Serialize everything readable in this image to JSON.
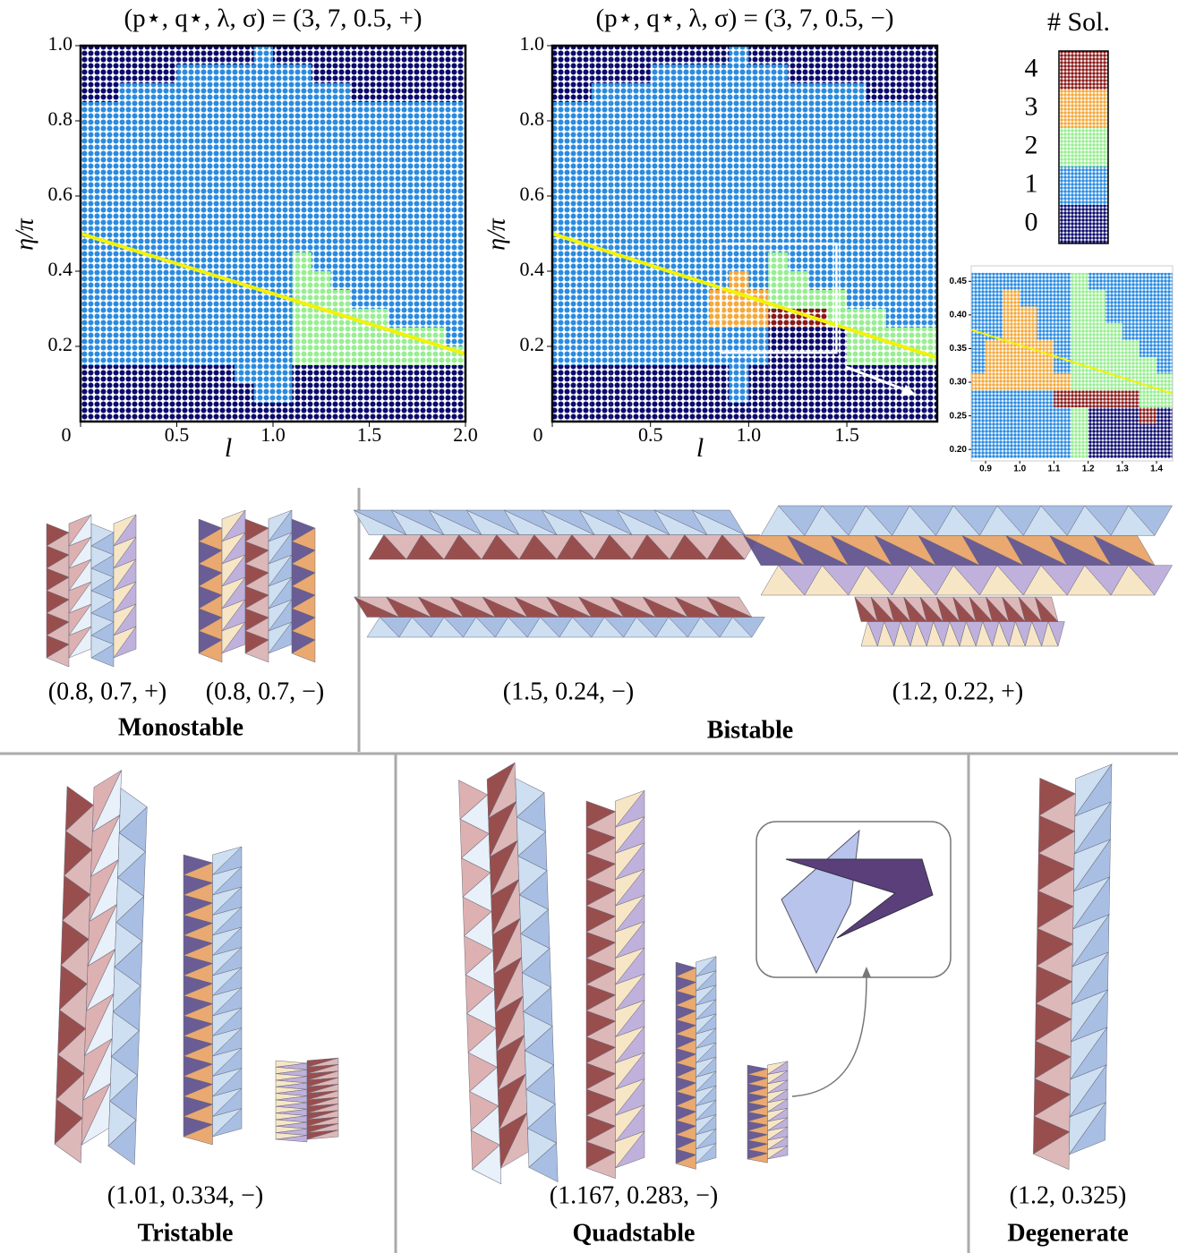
{
  "chart_data": [
    {
      "type": "heatmap",
      "title": "(p⋆, q⋆, λ, σ) = (3, 7, 0.5, +)",
      "xlabel": "l",
      "ylabel": "η/π",
      "x": [
        0.05,
        0.15,
        0.25,
        0.35,
        0.45,
        0.55,
        0.65,
        0.75,
        0.85,
        0.95,
        1.05,
        1.15,
        1.25,
        1.35,
        1.45,
        1.55,
        1.65,
        1.75,
        1.85,
        1.95
      ],
      "y": [
        0.975,
        0.925,
        0.875,
        0.825,
        0.775,
        0.725,
        0.675,
        0.625,
        0.575,
        0.525,
        0.475,
        0.425,
        0.375,
        0.325,
        0.275,
        0.225,
        0.175,
        0.125,
        0.075,
        0.025
      ],
      "z": [
        [
          0,
          0,
          0,
          0,
          0,
          0,
          0,
          0,
          0,
          1,
          0,
          0,
          0,
          0,
          0,
          0,
          0,
          0,
          0,
          0
        ],
        [
          0,
          0,
          0,
          0,
          0,
          1,
          1,
          1,
          1,
          1,
          1,
          1,
          0,
          0,
          0,
          0,
          0,
          0,
          0,
          0
        ],
        [
          0,
          0,
          1,
          1,
          1,
          1,
          1,
          1,
          1,
          1,
          1,
          1,
          1,
          1,
          0,
          0,
          0,
          0,
          0,
          0
        ],
        [
          1,
          1,
          1,
          1,
          1,
          1,
          1,
          1,
          1,
          1,
          1,
          1,
          1,
          1,
          1,
          1,
          1,
          1,
          1,
          1
        ],
        [
          1,
          1,
          1,
          1,
          1,
          1,
          1,
          1,
          1,
          1,
          1,
          1,
          1,
          1,
          1,
          1,
          1,
          1,
          1,
          1
        ],
        [
          1,
          1,
          1,
          1,
          1,
          1,
          1,
          1,
          1,
          1,
          1,
          1,
          1,
          1,
          1,
          1,
          1,
          1,
          1,
          1
        ],
        [
          1,
          1,
          1,
          1,
          1,
          1,
          1,
          1,
          1,
          1,
          1,
          1,
          1,
          1,
          1,
          1,
          1,
          1,
          1,
          1
        ],
        [
          1,
          1,
          1,
          1,
          1,
          1,
          1,
          1,
          1,
          1,
          1,
          1,
          1,
          1,
          1,
          1,
          1,
          1,
          1,
          1
        ],
        [
          1,
          1,
          1,
          1,
          1,
          1,
          1,
          1,
          1,
          1,
          1,
          1,
          1,
          1,
          1,
          1,
          1,
          1,
          1,
          1
        ],
        [
          1,
          1,
          1,
          1,
          1,
          1,
          1,
          1,
          1,
          1,
          1,
          1,
          1,
          1,
          1,
          1,
          1,
          1,
          1,
          1
        ],
        [
          1,
          1,
          1,
          1,
          1,
          1,
          1,
          1,
          1,
          1,
          1,
          1,
          1,
          1,
          1,
          1,
          1,
          1,
          1,
          1
        ],
        [
          1,
          1,
          1,
          1,
          1,
          1,
          1,
          1,
          1,
          1,
          1,
          2,
          1,
          1,
          1,
          1,
          1,
          1,
          1,
          1
        ],
        [
          1,
          1,
          1,
          1,
          1,
          1,
          1,
          1,
          1,
          1,
          1,
          2,
          2,
          1,
          1,
          1,
          1,
          1,
          1,
          1
        ],
        [
          1,
          1,
          1,
          1,
          1,
          1,
          1,
          1,
          1,
          1,
          1,
          2,
          2,
          2,
          1,
          1,
          1,
          1,
          1,
          1
        ],
        [
          1,
          1,
          1,
          1,
          1,
          1,
          1,
          1,
          1,
          1,
          1,
          2,
          2,
          2,
          2,
          2,
          1,
          1,
          1,
          1
        ],
        [
          1,
          1,
          1,
          1,
          1,
          1,
          1,
          1,
          1,
          1,
          1,
          2,
          2,
          2,
          2,
          2,
          2,
          2,
          2,
          1
        ],
        [
          1,
          1,
          1,
          1,
          1,
          1,
          1,
          1,
          1,
          1,
          1,
          2,
          2,
          2,
          2,
          2,
          2,
          2,
          2,
          2
        ],
        [
          0,
          0,
          0,
          0,
          0,
          0,
          0,
          0,
          1,
          1,
          1,
          0,
          0,
          0,
          0,
          0,
          0,
          0,
          0,
          0
        ],
        [
          0,
          0,
          0,
          0,
          0,
          0,
          0,
          0,
          0,
          1,
          1,
          0,
          0,
          0,
          0,
          0,
          0,
          0,
          0,
          0
        ],
        [
          0,
          0,
          0,
          0,
          0,
          0,
          0,
          0,
          0,
          0,
          0,
          0,
          0,
          0,
          0,
          0,
          0,
          0,
          0,
          0
        ]
      ],
      "lines": [
        {
          "x": [
            0,
            2.0
          ],
          "y": [
            0.5,
            0.18
          ],
          "color": "#f2f20a"
        }
      ],
      "xlim": [
        0,
        2.0
      ],
      "ylim": [
        0,
        1.0
      ],
      "xticks": [
        0,
        0.5,
        {
          "value": 1,
          "label": "1.0"
        },
        1.5,
        {
          "value": 2,
          "label": "2.0"
        }
      ],
      "yticks": [
        0.2,
        0.4,
        0.6,
        0.8,
        {
          "value": 1,
          "label": "1.0"
        }
      ]
    },
    {
      "type": "heatmap",
      "title": "(p⋆, q⋆, λ, σ) = (3, 7, 0.5, −)",
      "xlabel": "l",
      "ylabel": "η/π",
      "x": [
        0.05,
        0.15,
        0.25,
        0.35,
        0.45,
        0.55,
        0.65,
        0.75,
        0.85,
        0.95,
        1.05,
        1.15,
        1.25,
        1.35,
        1.45,
        1.55,
        1.65,
        1.75,
        1.85,
        1.95
      ],
      "y": [
        0.975,
        0.925,
        0.875,
        0.825,
        0.775,
        0.725,
        0.675,
        0.625,
        0.575,
        0.525,
        0.475,
        0.425,
        0.375,
        0.325,
        0.275,
        0.225,
        0.175,
        0.125,
        0.075,
        0.025
      ],
      "z": [
        [
          0,
          0,
          0,
          0,
          0,
          0,
          0,
          0,
          0,
          1,
          0,
          0,
          0,
          0,
          0,
          0,
          0,
          0,
          0,
          0
        ],
        [
          0,
          0,
          0,
          0,
          0,
          1,
          1,
          1,
          1,
          1,
          1,
          1,
          0,
          0,
          0,
          0,
          0,
          0,
          0,
          0
        ],
        [
          0,
          0,
          1,
          1,
          1,
          1,
          1,
          1,
          1,
          1,
          1,
          1,
          1,
          1,
          1,
          1,
          0,
          0,
          0,
          0
        ],
        [
          1,
          1,
          1,
          1,
          1,
          1,
          1,
          1,
          1,
          1,
          1,
          1,
          1,
          1,
          1,
          1,
          1,
          1,
          1,
          1
        ],
        [
          1,
          1,
          1,
          1,
          1,
          1,
          1,
          1,
          1,
          1,
          1,
          1,
          1,
          1,
          1,
          1,
          1,
          1,
          1,
          1
        ],
        [
          1,
          1,
          1,
          1,
          1,
          1,
          1,
          1,
          1,
          1,
          1,
          1,
          1,
          1,
          1,
          1,
          1,
          1,
          1,
          1
        ],
        [
          1,
          1,
          1,
          1,
          1,
          1,
          1,
          1,
          1,
          1,
          1,
          1,
          1,
          1,
          1,
          1,
          1,
          1,
          1,
          1
        ],
        [
          1,
          1,
          1,
          1,
          1,
          1,
          1,
          1,
          1,
          1,
          1,
          1,
          1,
          1,
          1,
          1,
          1,
          1,
          1,
          1
        ],
        [
          1,
          1,
          1,
          1,
          1,
          1,
          1,
          1,
          1,
          1,
          1,
          1,
          1,
          1,
          1,
          1,
          1,
          1,
          1,
          1
        ],
        [
          1,
          1,
          1,
          1,
          1,
          1,
          1,
          1,
          1,
          1,
          1,
          1,
          1,
          1,
          1,
          1,
          1,
          1,
          1,
          1
        ],
        [
          1,
          1,
          1,
          1,
          1,
          1,
          1,
          1,
          1,
          1,
          1,
          1,
          1,
          1,
          1,
          1,
          1,
          1,
          1,
          1
        ],
        [
          1,
          1,
          1,
          1,
          1,
          1,
          1,
          1,
          1,
          1,
          1,
          2,
          1,
          1,
          1,
          1,
          1,
          1,
          1,
          1
        ],
        [
          1,
          1,
          1,
          1,
          1,
          1,
          1,
          1,
          1,
          3,
          1,
          2,
          2,
          1,
          1,
          1,
          1,
          1,
          1,
          1
        ],
        [
          1,
          1,
          1,
          1,
          1,
          1,
          1,
          1,
          3,
          3,
          3,
          2,
          2,
          2,
          2,
          1,
          1,
          1,
          1,
          1
        ],
        [
          1,
          1,
          1,
          1,
          1,
          1,
          1,
          1,
          3,
          3,
          3,
          4,
          4,
          4,
          2,
          2,
          2,
          1,
          1,
          1
        ],
        [
          1,
          1,
          1,
          1,
          1,
          1,
          1,
          1,
          1,
          1,
          1,
          0,
          0,
          0,
          0,
          2,
          2,
          2,
          2,
          2
        ],
        [
          1,
          1,
          1,
          1,
          1,
          1,
          1,
          1,
          1,
          1,
          1,
          0,
          0,
          0,
          0,
          2,
          2,
          2,
          2,
          2
        ],
        [
          0,
          0,
          0,
          0,
          0,
          0,
          0,
          0,
          0,
          1,
          0,
          0,
          0,
          0,
          0,
          0,
          0,
          0,
          0,
          0
        ],
        [
          0,
          0,
          0,
          0,
          0,
          0,
          0,
          0,
          0,
          1,
          0,
          0,
          0,
          0,
          0,
          0,
          0,
          0,
          0,
          0
        ],
        [
          0,
          0,
          0,
          0,
          0,
          0,
          0,
          0,
          0,
          0,
          0,
          0,
          0,
          0,
          0,
          0,
          0,
          0,
          0,
          0
        ]
      ],
      "lines": [
        {
          "x": [
            0,
            1.96
          ],
          "y": [
            0.5,
            0.17
          ],
          "color": "#f2f20a"
        }
      ],
      "xlim": [
        0,
        1.96
      ],
      "ylim": [
        0,
        1.0
      ],
      "xticks": [
        0,
        0.5,
        {
          "value": 1,
          "label": "1.0"
        },
        1.5
      ],
      "yticks": [
        0.2,
        0.4,
        0.6,
        0.8,
        {
          "value": 1,
          "label": "1.0"
        }
      ]
    },
    {
      "type": "heatmap",
      "x": [
        0.875,
        0.925,
        0.975,
        1.025,
        1.075,
        1.125,
        1.175,
        1.225,
        1.275,
        1.325,
        1.375,
        1.425
      ],
      "y": [
        0.45,
        0.425,
        0.4,
        0.375,
        0.35,
        0.325,
        0.3,
        0.275,
        0.25,
        0.225,
        0.2
      ],
      "z": [
        [
          1,
          1,
          1,
          1,
          1,
          1,
          2,
          1,
          1,
          1,
          1,
          1
        ],
        [
          1,
          1,
          3,
          1,
          1,
          1,
          2,
          2,
          1,
          1,
          1,
          1
        ],
        [
          1,
          1,
          3,
          3,
          1,
          1,
          2,
          2,
          1,
          1,
          1,
          1
        ],
        [
          1,
          1,
          3,
          3,
          1,
          1,
          2,
          2,
          2,
          1,
          1,
          1
        ],
        [
          1,
          3,
          3,
          3,
          3,
          1,
          2,
          2,
          2,
          2,
          1,
          1
        ],
        [
          1,
          3,
          3,
          3,
          3,
          1,
          2,
          2,
          2,
          2,
          2,
          1
        ],
        [
          3,
          3,
          3,
          3,
          3,
          3,
          2,
          2,
          2,
          2,
          2,
          2
        ],
        [
          1,
          1,
          1,
          1,
          1,
          4,
          4,
          4,
          4,
          4,
          2,
          2
        ],
        [
          1,
          1,
          1,
          1,
          1,
          1,
          2,
          0,
          0,
          0,
          4,
          0
        ],
        [
          1,
          1,
          1,
          1,
          1,
          1,
          2,
          0,
          0,
          0,
          0,
          0
        ],
        [
          1,
          1,
          1,
          1,
          1,
          1,
          2,
          0,
          0,
          0,
          0,
          0
        ]
      ],
      "lines": [
        {
          "x": [
            0.858,
            1.447
          ],
          "y": [
            0.378,
            0.283
          ],
          "color": "#f2f20a"
        }
      ],
      "xlim": [
        0.858,
        1.447
      ],
      "ylim": [
        0.183,
        0.473
      ],
      "xticks": [
        0.9,
        {
          "value": 1,
          "label": "1.0"
        },
        1.1,
        1.2,
        1.3,
        1.4
      ],
      "yticks": [
        {
          "value": 0.2,
          "label": "0.20"
        },
        0.25,
        {
          "value": 0.3,
          "label": "0.30"
        },
        0.35,
        {
          "value": 0.4,
          "label": "0.40"
        },
        0.45
      ]
    }
  ],
  "colorbar": {
    "title": "# Sol.",
    "ticks": [
      0,
      1,
      2,
      3,
      4
    ],
    "colors": [
      "#0b0b6e",
      "#2a8be0",
      "#98ee92",
      "#f4a93c",
      "#8b1a1a"
    ]
  },
  "panels": [
    {
      "name": "Monostable",
      "labels": [
        "(0.8, 0.7, +)",
        "(0.8, 0.7, −)"
      ]
    },
    {
      "name": "Bistable",
      "labels": [
        "(1.5, 0.24, −)",
        "(1.2, 0.22, +)"
      ]
    },
    {
      "name": "Tristable",
      "labels": [
        "(1.01, 0.334, −)"
      ]
    },
    {
      "name": "Quadstable",
      "labels": [
        "(1.167, 0.283, −)"
      ]
    },
    {
      "name": "Degenerate",
      "labels": [
        "(1.2, 0.325)"
      ]
    }
  ]
}
